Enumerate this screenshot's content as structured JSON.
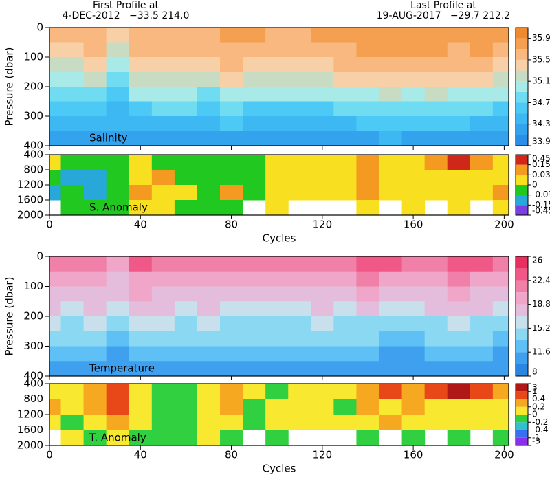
{
  "header": {
    "first": "First Profile at",
    "first_info": "4-DEC-2012   −33.5 214.0",
    "last": "Last Profile at",
    "last_info": "19-AUG-2017   −29.7 212.2"
  },
  "chart_data": [
    {
      "type": "heatmap",
      "label": "Salinity",
      "ylabel": "Pressure (dbar)",
      "xtick_labels": false,
      "xlim": [
        0,
        202
      ],
      "xticks": [
        0,
        40,
        80,
        120,
        160,
        200
      ],
      "ylim": [
        0,
        400
      ],
      "yticks": [
        0,
        100,
        200,
        300,
        400
      ],
      "x": [
        0,
        10,
        20,
        30,
        40,
        50,
        60,
        70,
        80,
        90,
        100,
        110,
        120,
        130,
        140,
        150,
        160,
        170,
        180,
        190,
        200
      ],
      "y": [
        25,
        75,
        125,
        175,
        225,
        275,
        325,
        375
      ],
      "values": [
        [
          35.5,
          35.5,
          35.6,
          35.4,
          35.6,
          35.6,
          35.6,
          35.6,
          35.7,
          35.7,
          35.6,
          35.6,
          35.7,
          35.7,
          35.8,
          35.8,
          35.8,
          35.8,
          35.7,
          35.8,
          35.8
        ],
        [
          35.4,
          35.4,
          35.5,
          35.2,
          35.5,
          35.5,
          35.5,
          35.5,
          35.6,
          35.6,
          35.5,
          35.5,
          35.6,
          35.6,
          35.7,
          35.7,
          35.7,
          35.7,
          35.6,
          35.7,
          35.6
        ],
        [
          35.2,
          35.2,
          35.3,
          35.0,
          35.4,
          35.4,
          35.4,
          35.4,
          35.5,
          35.4,
          35.4,
          35.4,
          35.4,
          35.5,
          35.5,
          35.6,
          35.5,
          35.6,
          35.5,
          35.5,
          35.4
        ],
        [
          35.0,
          35.0,
          35.1,
          34.8,
          35.2,
          35.2,
          35.2,
          35.1,
          35.3,
          35.2,
          35.2,
          35.2,
          35.2,
          35.3,
          35.3,
          35.4,
          35.3,
          35.4,
          35.3,
          35.3,
          35.2
        ],
        [
          34.8,
          34.8,
          34.8,
          34.6,
          34.9,
          34.9,
          34.9,
          34.8,
          35.0,
          34.9,
          34.9,
          34.9,
          34.9,
          35.0,
          35.0,
          35.1,
          35.0,
          35.1,
          35.0,
          35.0,
          34.9
        ],
        [
          34.6,
          34.6,
          34.6,
          34.4,
          34.6,
          34.7,
          34.7,
          34.6,
          34.7,
          34.6,
          34.6,
          34.6,
          34.6,
          34.7,
          34.7,
          34.8,
          34.7,
          34.8,
          34.7,
          34.7,
          34.6
        ],
        [
          34.4,
          34.4,
          34.4,
          34.3,
          34.4,
          34.4,
          34.4,
          34.4,
          34.5,
          34.4,
          34.4,
          34.4,
          34.4,
          34.4,
          34.5,
          34.5,
          34.5,
          34.5,
          34.5,
          34.4,
          34.4
        ],
        [
          34.2,
          34.2,
          34.2,
          34.1,
          34.2,
          34.2,
          34.2,
          34.2,
          34.2,
          34.2,
          34.2,
          34.2,
          34.2,
          34.2,
          34.2,
          34.3,
          34.2,
          34.2,
          34.2,
          34.2,
          34.2
        ]
      ],
      "bounds": [
        33.9,
        34.1,
        34.3,
        34.5,
        34.7,
        34.9,
        35.1,
        35.3,
        35.5,
        35.7,
        35.9,
        36.1
      ],
      "colors": [
        "#2a8fe8",
        "#33a3ee",
        "#3db8f2",
        "#4ccaf5",
        "#6fdcf2",
        "#a8eae8",
        "#c8dcc4",
        "#f8d0a8",
        "#f8b880",
        "#f5a050",
        "#f08a30"
      ],
      "cbar_ticks": [
        33.9,
        34.3,
        34.7,
        35.1,
        35.5,
        35.9
      ]
    },
    {
      "type": "heatmap",
      "label": "S. Anomaly",
      "xlabel": "Cycles",
      "xtick_labels": true,
      "xlim": [
        0,
        202
      ],
      "xticks": [
        0,
        40,
        80,
        120,
        160,
        200
      ],
      "ylim": [
        400,
        2000
      ],
      "yticks": [
        400,
        800,
        1200,
        1600,
        2000
      ],
      "x": [
        0,
        10,
        20,
        30,
        40,
        50,
        60,
        70,
        80,
        90,
        100,
        110,
        120,
        130,
        140,
        150,
        160,
        170,
        180,
        190,
        200
      ],
      "y": [
        600,
        1000,
        1400,
        1800
      ],
      "values": [
        [
          0.01,
          -0.02,
          -0.02,
          -0.02,
          0.0,
          -0.02,
          -0.02,
          -0.02,
          -0.02,
          -0.02,
          0.01,
          0.01,
          0.01,
          0.02,
          0.05,
          0.02,
          0.02,
          0.05,
          0.2,
          0.05,
          0.02
        ],
        [
          -0.02,
          -0.05,
          -0.05,
          -0.02,
          0.02,
          0.05,
          -0.02,
          -0.02,
          -0.02,
          -0.02,
          0.02,
          0.0,
          0.01,
          0.01,
          0.05,
          0.01,
          0.0,
          0.02,
          0.01,
          0.02,
          0.02
        ],
        [
          -0.05,
          -0.02,
          -0.05,
          -0.02,
          0.05,
          0.02,
          0.01,
          -0.02,
          0.05,
          -0.02,
          0.01,
          0.02,
          0.01,
          0.0,
          0.05,
          0.02,
          0.01,
          0.02,
          0.01,
          0.02,
          0.05
        ],
        [
          null,
          -0.02,
          -0.02,
          -0.02,
          0.01,
          0.01,
          -0.02,
          -0.02,
          -0.02,
          null,
          0.01,
          null,
          null,
          null,
          0.02,
          null,
          0.02,
          null,
          0.02,
          null,
          0.02
        ]
      ],
      "bounds": [
        -0.45,
        -0.15,
        -0.03,
        0,
        0.03,
        0.15,
        0.45
      ],
      "colors": [
        "#7a40e0",
        "#28a8d8",
        "#20c820",
        "#f8e020",
        "#f59a20",
        "#d02818"
      ],
      "cbar_ticks": [
        -0.45,
        -0.15,
        -0.03,
        0,
        0.03,
        0.15,
        0.45
      ]
    },
    {
      "type": "heatmap",
      "label": "Temperature",
      "ylabel": "Pressure (dbar)",
      "xtick_labels": false,
      "xlim": [
        0,
        202
      ],
      "xticks": [
        0,
        40,
        80,
        120,
        160,
        200
      ],
      "ylim": [
        0,
        400
      ],
      "yticks": [
        0,
        100,
        200,
        300,
        400
      ],
      "x": [
        0,
        10,
        20,
        30,
        40,
        50,
        60,
        70,
        80,
        90,
        100,
        110,
        120,
        130,
        140,
        150,
        160,
        170,
        180,
        190,
        200
      ],
      "y": [
        25,
        75,
        125,
        175,
        225,
        275,
        325,
        375
      ],
      "values": [
        [
          22,
          21,
          22,
          19,
          23,
          22,
          21,
          22,
          21,
          21,
          21,
          21,
          22,
          21,
          23,
          23,
          22,
          22,
          23,
          23,
          21
        ],
        [
          20,
          19.5,
          20,
          18,
          20.5,
          20,
          19.5,
          20,
          19.5,
          19.5,
          19.5,
          19.5,
          20,
          19.5,
          21,
          20.5,
          20,
          20.5,
          21,
          20.5,
          19.5
        ],
        [
          18.5,
          18,
          18.5,
          17,
          19,
          18.5,
          18,
          18.5,
          18,
          18,
          18,
          18,
          18.5,
          18,
          19,
          18.5,
          18,
          18.5,
          19,
          18.5,
          18
        ],
        [
          17,
          16.5,
          17,
          16,
          17.5,
          17,
          16.5,
          17,
          16.5,
          16.5,
          16.5,
          16.5,
          17,
          16.5,
          17,
          16.5,
          16,
          17,
          17.5,
          17,
          16.5
        ],
        [
          15.5,
          15,
          15.5,
          14.5,
          15.5,
          15.5,
          15,
          15.5,
          15,
          15,
          15,
          15,
          15.5,
          15,
          15,
          14.5,
          14.5,
          15,
          15.5,
          15,
          14.5
        ],
        [
          14,
          13.5,
          14,
          13,
          14,
          14,
          13.5,
          13.5,
          13.5,
          13.5,
          13.5,
          13.5,
          14,
          13.5,
          13.5,
          13,
          13,
          13.5,
          14,
          13.5,
          13
        ],
        [
          12.5,
          12,
          12.5,
          11.5,
          12.5,
          12.5,
          12,
          12,
          12,
          12,
          12,
          12,
          12.5,
          12,
          12,
          11.5,
          11.5,
          12,
          12.5,
          12,
          11.5
        ],
        [
          11,
          10.5,
          11,
          10,
          11,
          11,
          10.5,
          10.5,
          10.5,
          11,
          11,
          11,
          11,
          11,
          10.5,
          10.5,
          10.5,
          10.5,
          11,
          10.5,
          10.5
        ]
      ],
      "bounds": [
        8,
        9.8,
        11.6,
        13.4,
        15.2,
        17,
        18.8,
        20.6,
        22.4,
        24.2,
        26
      ],
      "colors": [
        "#2a86e0",
        "#3fa0ef",
        "#5fc0f5",
        "#8ad8f2",
        "#c8e0ec",
        "#e4bcdc",
        "#f0a6c8",
        "#f080a8",
        "#f05888",
        "#e83060"
      ],
      "cbar_ticks": [
        8,
        11.6,
        15.2,
        18.8,
        22.4,
        26
      ]
    },
    {
      "type": "heatmap",
      "label": "T. Anomaly",
      "xlabel": "Cycles",
      "xtick_labels": true,
      "xlim": [
        0,
        202
      ],
      "xticks": [
        0,
        40,
        80,
        120,
        160,
        200
      ],
      "ylim": [
        400,
        2000
      ],
      "yticks": [
        400,
        800,
        1200,
        1600,
        2000
      ],
      "x": [
        0,
        10,
        20,
        30,
        40,
        50,
        60,
        70,
        80,
        90,
        100,
        110,
        120,
        130,
        140,
        150,
        160,
        170,
        180,
        190,
        200
      ],
      "y": [
        600,
        1000,
        1400,
        1800
      ],
      "values": [
        [
          0.1,
          0.1,
          0.3,
          0.5,
          0.1,
          -0.1,
          -0.1,
          0.1,
          0.3,
          0.1,
          -0.1,
          0.1,
          0.1,
          0.1,
          0.3,
          0.5,
          0.3,
          0.5,
          1.5,
          0.5,
          0.3
        ],
        [
          0.3,
          0.1,
          0.3,
          0.5,
          0.1,
          -0.1,
          -0.1,
          0.1,
          0.3,
          -0.1,
          0.1,
          0.1,
          0.1,
          -0.1,
          0.3,
          0.1,
          0.3,
          0.1,
          0.1,
          0.1,
          0.1
        ],
        [
          0.1,
          -0.1,
          0.1,
          0.3,
          0.1,
          -0.1,
          -0.1,
          0.1,
          0.1,
          -0.1,
          0.1,
          0.1,
          0.1,
          0.1,
          0.1,
          0.3,
          0.1,
          0.1,
          0.1,
          0.1,
          0.1
        ],
        [
          null,
          0.1,
          -0.1,
          0.1,
          -0.1,
          -0.1,
          -0.1,
          0.1,
          -0.1,
          null,
          -0.1,
          null,
          null,
          null,
          -0.1,
          null,
          -0.1,
          null,
          -0.1,
          null,
          -0.1
        ]
      ],
      "bounds": [
        -3,
        -1,
        -0.4,
        -0.2,
        0,
        0.2,
        0.4,
        1,
        3
      ],
      "colors": [
        "#8a30e8",
        "#3a70f0",
        "#30c0d0",
        "#30d040",
        "#f8e830",
        "#f5a820",
        "#e84818",
        "#b01818"
      ],
      "cbar_ticks": [
        -3,
        -1,
        -0.4,
        -0.2,
        0,
        0.2,
        0.4,
        1,
        3
      ]
    }
  ]
}
